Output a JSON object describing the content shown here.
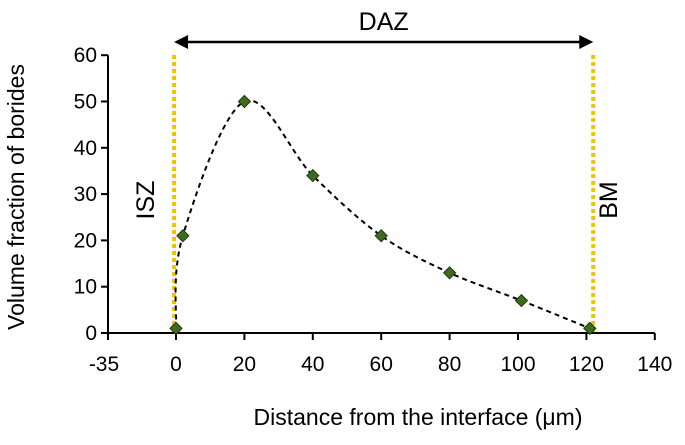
{
  "chart_data": {
    "type": "scatter",
    "xlabel": "Distance from the interface (μm)",
    "ylabel": "Volume fraction of borides",
    "xlim": [
      -35,
      140
    ],
    "ylim": [
      0,
      60
    ],
    "x_ticks": [
      "-35",
      "0",
      "20",
      "40",
      "60",
      "80",
      "100",
      "120",
      "140"
    ],
    "y_ticks": [
      "0",
      "10",
      "20",
      "30",
      "40",
      "50",
      "60"
    ],
    "series": [
      {
        "x": [
          0,
          2,
          20,
          40,
          60,
          80,
          101,
          121
        ],
        "y": [
          1,
          21,
          50,
          34,
          21,
          13,
          7,
          1
        ]
      }
    ],
    "marker_color": "#3e6b1f",
    "boundary_color": "#f5c200",
    "boundaries": [
      {
        "x": -1,
        "label": "ISZ"
      },
      {
        "x": 122,
        "label": "BM"
      }
    ],
    "span": {
      "from": -1,
      "to": 122,
      "label": "DAZ"
    }
  }
}
